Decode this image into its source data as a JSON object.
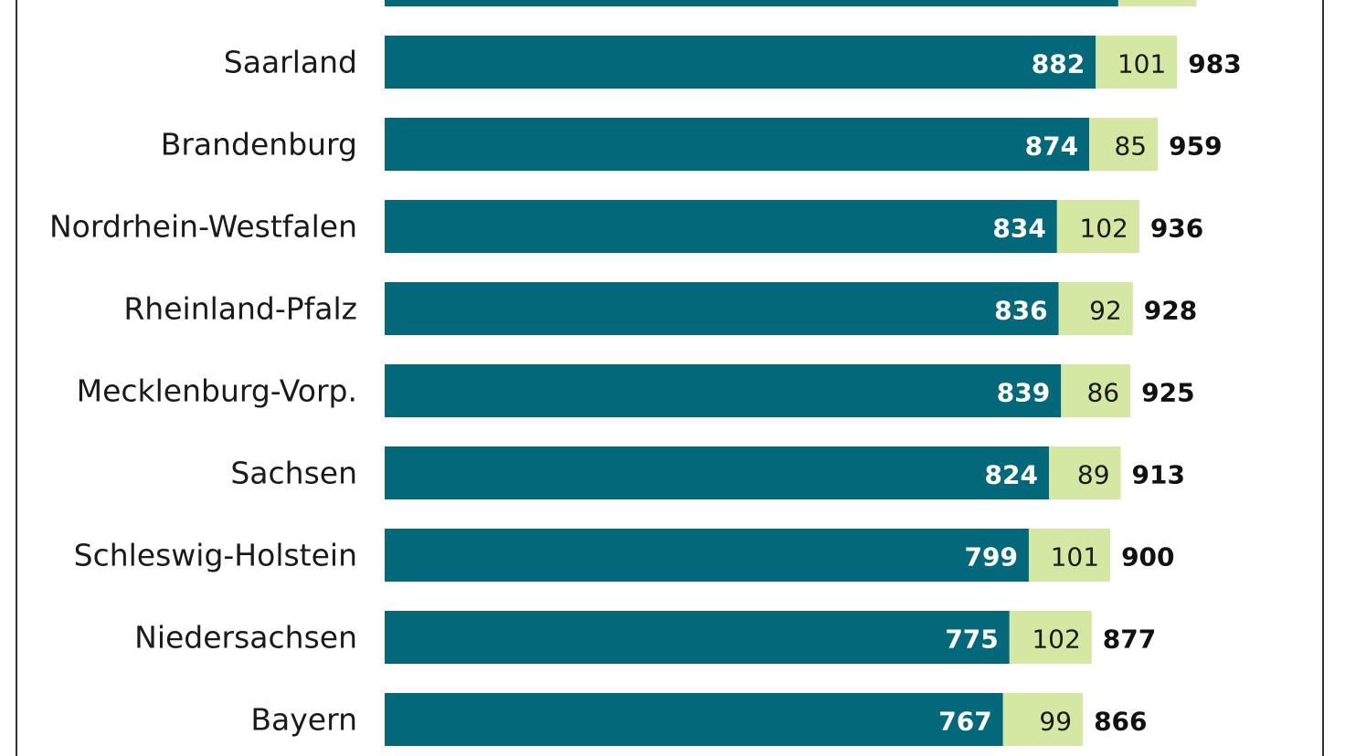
{
  "colors": {
    "primary": "#02687a",
    "secondary": "#d4e8a3",
    "border": "#333333"
  },
  "chart_data": {
    "type": "bar",
    "orientation": "horizontal",
    "stacked": true,
    "title": "",
    "xlabel": "",
    "ylabel": "",
    "xlim": [
      0,
      1200
    ],
    "categories": [
      "Saarland",
      "Brandenburg",
      "Nordrhein-Westfalen",
      "Rheinland-Pfalz",
      "Mecklenburg-Vorp.",
      "Sachsen",
      "Schleswig-Holstein",
      "Niedersachsen",
      "Bayern"
    ],
    "series": [
      {
        "name": "primary",
        "values": [
          882,
          874,
          834,
          836,
          839,
          824,
          799,
          775,
          767
        ]
      },
      {
        "name": "secondary",
        "values": [
          101,
          85,
          102,
          92,
          86,
          89,
          101,
          102,
          99
        ]
      }
    ],
    "totals": [
      "983",
      "959",
      "936",
      "928",
      "925",
      "913",
      "900",
      "877",
      "866"
    ],
    "partial_row_above": {
      "values": [
        910,
        97
      ]
    }
  }
}
